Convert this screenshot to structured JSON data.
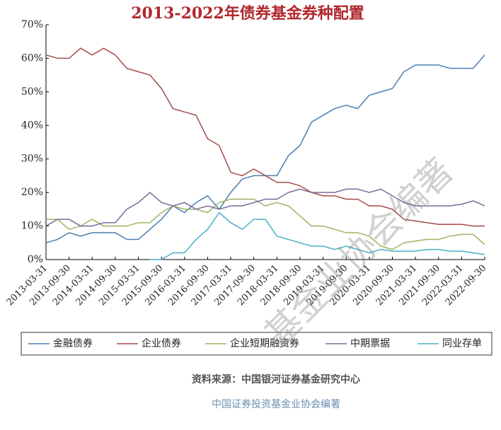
{
  "chart_data": {
    "type": "line",
    "title": "2013-2022年债券基金券种配置",
    "categories": [
      "2013-03-31",
      null,
      "2013-09-30",
      null,
      "2014-03-31",
      null,
      "2014-09-30",
      null,
      "2015-03-31",
      null,
      "2015-09-30",
      null,
      "2016-03-31",
      null,
      "2016-09-30",
      null,
      "2017-03-31",
      null,
      "2017-09-30",
      null,
      "2018-03-31",
      null,
      "2018-09-30",
      null,
      "2019-03-31",
      null,
      "2019-09-30",
      null,
      "2020-03-31",
      null,
      "2020-09-30",
      null,
      "2021-03-31",
      null,
      "2021-09-30",
      null,
      "2022-03-31",
      null,
      "2022-09-30"
    ],
    "series": [
      {
        "name": "金融债券",
        "color": "#4a7fb0",
        "values": [
          5,
          6,
          8,
          7,
          8,
          8,
          8,
          6,
          6,
          9,
          12,
          16,
          14,
          17,
          19,
          15,
          20,
          24,
          25,
          25,
          25,
          31,
          34,
          41,
          43,
          45,
          46,
          45,
          49,
          50,
          51,
          56,
          58,
          58,
          58,
          57,
          57,
          57,
          61
        ]
      },
      {
        "name": "企业债券",
        "color": "#a84a4a",
        "values": [
          61,
          60,
          60,
          63,
          61,
          63,
          61,
          57,
          56,
          55,
          51,
          45,
          44,
          43,
          36,
          34,
          26,
          25,
          27,
          25,
          23,
          23,
          22,
          20,
          19,
          19,
          18,
          18,
          16,
          16,
          15,
          12,
          11.5,
          11,
          10.5,
          10.5,
          10.5,
          10,
          10
        ]
      },
      {
        "name": "企业短期融资券",
        "color": "#9ab560",
        "values": [
          12,
          12,
          9,
          10,
          12,
          10,
          10,
          10,
          11,
          11,
          14,
          16,
          15,
          15,
          14,
          17,
          18,
          18,
          18,
          16,
          17,
          16,
          13,
          10,
          10,
          9,
          8,
          8,
          7,
          4,
          3,
          5,
          5.5,
          6,
          6,
          7,
          7.5,
          7.5,
          4.5
        ]
      },
      {
        "name": "中期票据",
        "color": "#7a6a9a",
        "values": [
          10,
          12,
          12,
          10,
          10,
          11,
          11,
          15,
          17,
          20,
          17,
          16,
          17,
          15,
          16,
          15,
          16,
          16,
          17,
          18,
          18,
          20,
          21,
          20,
          20,
          20,
          21,
          21,
          20,
          21,
          19,
          17,
          16,
          16,
          16,
          16,
          16.5,
          17.5,
          16
        ]
      },
      {
        "name": "同业存单",
        "color": "#4ab0c8",
        "values": [
          null,
          null,
          null,
          null,
          null,
          null,
          null,
          null,
          null,
          0,
          0,
          2,
          2,
          6,
          9,
          14,
          11,
          9,
          12,
          12,
          7,
          6,
          5,
          4,
          4,
          3,
          4,
          3,
          2,
          3,
          2.5,
          2.5,
          2.5,
          3,
          3,
          2.5,
          2.5,
          2,
          1.5
        ]
      }
    ],
    "ylim": [
      0,
      70
    ],
    "yticks": [
      {
        "value": 0,
        "label": "0%"
      },
      {
        "value": 10,
        "label": "10%"
      },
      {
        "value": 20,
        "label": "20%"
      },
      {
        "value": 30,
        "label": "30%"
      },
      {
        "value": 40,
        "label": "40%"
      },
      {
        "value": 50,
        "label": "50%"
      },
      {
        "value": 60,
        "label": "60%"
      },
      {
        "value": 70,
        "label": "70%"
      }
    ],
    "source": "资料来源：中国银河证券基金研究中心",
    "credit": "中国证券投资基金业协会编著",
    "watermark": "基金业协会编著"
  }
}
